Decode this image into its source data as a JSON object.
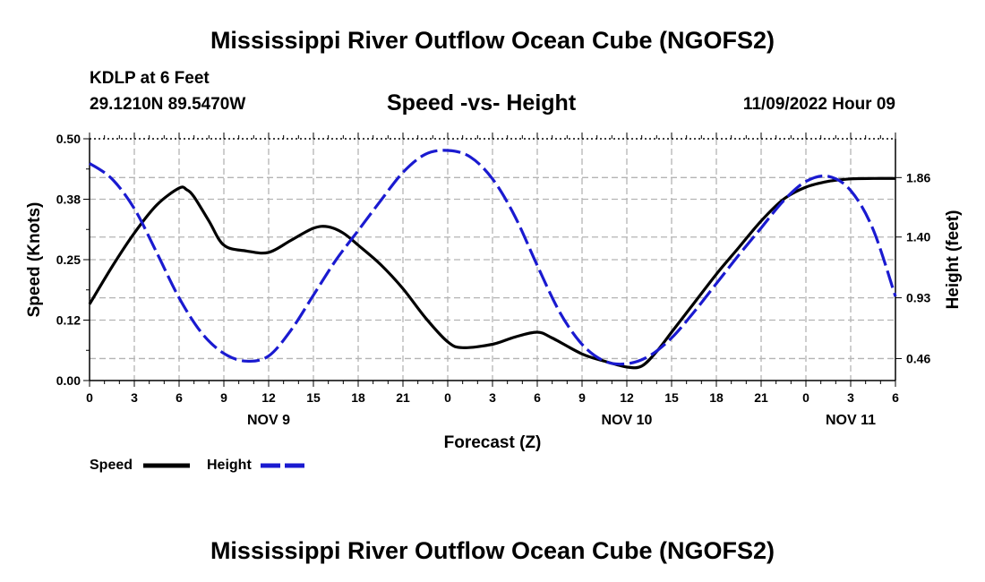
{
  "page": {
    "title": "Mississippi River Outflow Ocean Cube (NGOFS2)",
    "footer_title": "Mississippi River Outflow Ocean Cube (NGOFS2)"
  },
  "header": {
    "station": "KDLP at 6 Feet",
    "coords": "29.1210N  89.5470W",
    "subtitle": "Speed -vs- Height",
    "datetime": "11/09/2022 Hour 09"
  },
  "colors": {
    "speed": "#000000",
    "height": "#1a1ad0",
    "grid": "#b4b4b4"
  },
  "chart_data": {
    "type": "line",
    "title": "Speed -vs- Height",
    "xlabel": "Forecast (Z)",
    "ylabel": "Speed (Knots)",
    "y2label": "Height (feet)",
    "xlim": [
      0,
      54
    ],
    "ylim": [
      0,
      0.5
    ],
    "y2lim": [
      0.29,
      2.16
    ],
    "x_ticks": [
      0,
      3,
      6,
      9,
      12,
      15,
      18,
      21,
      24,
      27,
      30,
      33,
      36,
      39,
      42,
      45,
      48,
      51,
      54
    ],
    "x_tick_labels": [
      "0",
      "3",
      "6",
      "9",
      "12",
      "15",
      "18",
      "21",
      "0",
      "3",
      "6",
      "9",
      "12",
      "15",
      "18",
      "21",
      "0",
      "3",
      "6"
    ],
    "date_labels": [
      {
        "x": 12,
        "label": "NOV 9"
      },
      {
        "x": 36,
        "label": "NOV 10"
      },
      {
        "x": 51,
        "label": "NOV 11"
      }
    ],
    "y_ticks": [
      0.0,
      0.125,
      0.25,
      0.375,
      0.5
    ],
    "y_tick_labels": [
      "0.00",
      "0.12",
      "0.25",
      "0.38",
      "0.50"
    ],
    "y2_ticks": [
      0.46,
      0.93,
      1.4,
      1.86
    ],
    "y2_tick_labels": [
      "0.46",
      "0.93",
      "1.40",
      "1.86"
    ],
    "grid": true,
    "legend": {
      "position": "bottom-left",
      "entries": [
        "Speed",
        "Height"
      ]
    },
    "series": [
      {
        "name": "Speed",
        "axis": "left",
        "style": "solid",
        "x": [
          0,
          1.5,
          3,
          4.5,
          6,
          6.5,
          7,
          8,
          9,
          10.5,
          12,
          13.5,
          15,
          16,
          17,
          18,
          19.5,
          21,
          22.5,
          24,
          25,
          27,
          28.5,
          30,
          31,
          33,
          34.5,
          36,
          37,
          38,
          39,
          40.5,
          42,
          43.5,
          45,
          46.5,
          48,
          49.5,
          51,
          52.5,
          54
        ],
        "values": [
          0.158,
          0.235,
          0.305,
          0.363,
          0.398,
          0.395,
          0.38,
          0.33,
          0.28,
          0.268,
          0.265,
          0.29,
          0.315,
          0.318,
          0.305,
          0.28,
          0.24,
          0.19,
          0.13,
          0.08,
          0.068,
          0.075,
          0.09,
          0.1,
          0.088,
          0.055,
          0.04,
          0.028,
          0.03,
          0.06,
          0.1,
          0.16,
          0.22,
          0.275,
          0.33,
          0.375,
          0.4,
          0.412,
          0.417,
          0.418,
          0.418
        ]
      },
      {
        "name": "Height",
        "axis": "right",
        "style": "dashed",
        "x": [
          0,
          1.5,
          3,
          4.5,
          6,
          7.5,
          9,
          10.5,
          12,
          13.5,
          15,
          16.5,
          18,
          19.5,
          21,
          22.5,
          24,
          25.5,
          27,
          28.5,
          30,
          31.5,
          33,
          34.5,
          36,
          37.5,
          39,
          40.5,
          42,
          43.5,
          45,
          46.5,
          48,
          49.5,
          51,
          52.5,
          54
        ],
        "values": [
          1.97,
          1.85,
          1.62,
          1.28,
          0.93,
          0.66,
          0.5,
          0.44,
          0.48,
          0.68,
          0.95,
          1.22,
          1.45,
          1.68,
          1.9,
          2.04,
          2.07,
          2.02,
          1.85,
          1.56,
          1.18,
          0.82,
          0.57,
          0.44,
          0.42,
          0.48,
          0.62,
          0.82,
          1.04,
          1.26,
          1.47,
          1.68,
          1.83,
          1.87,
          1.76,
          1.46,
          0.94
        ]
      }
    ]
  }
}
